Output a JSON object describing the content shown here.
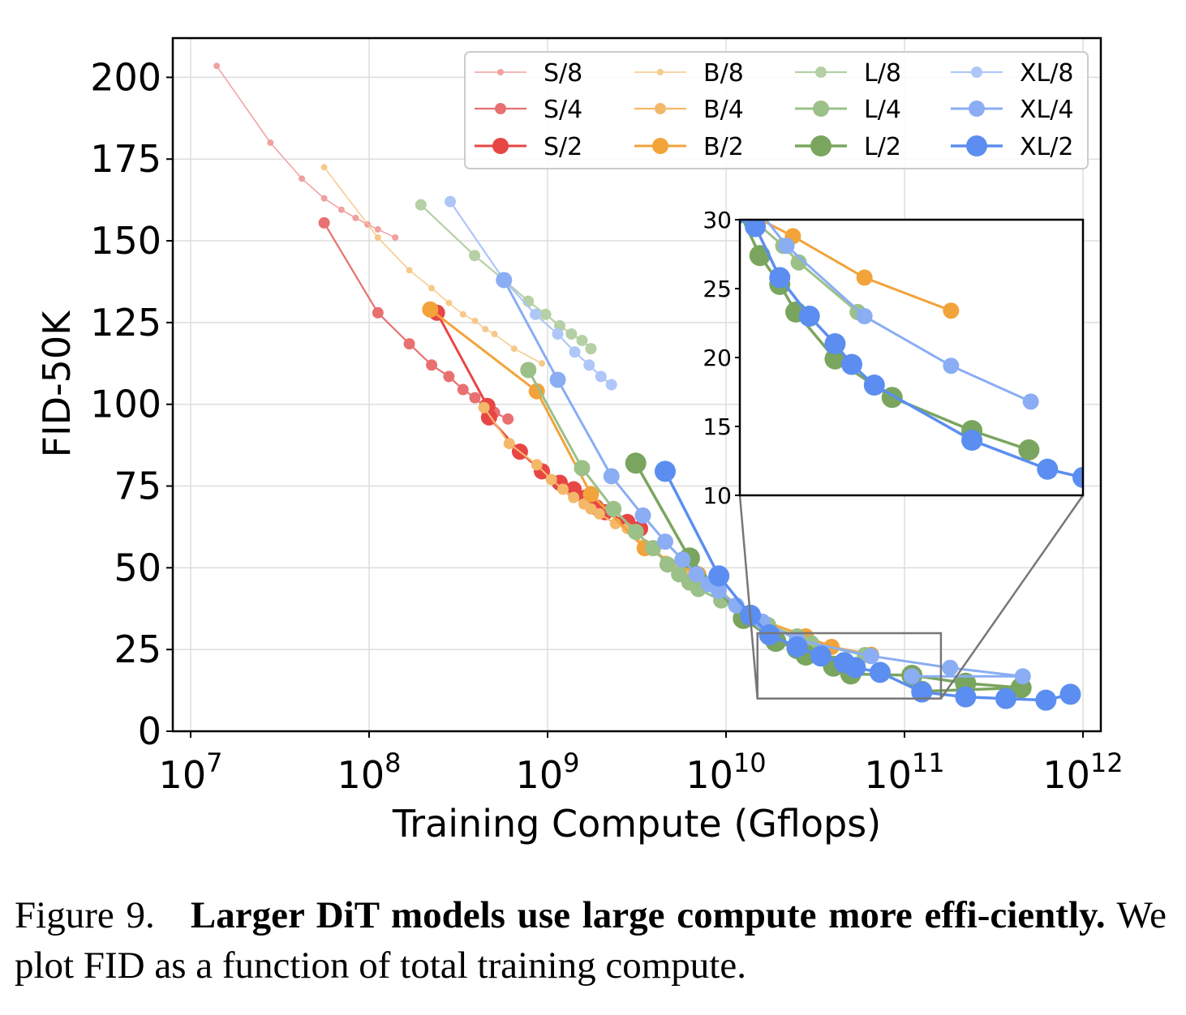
{
  "chart_data": {
    "type": "line",
    "xlabel": "Training Compute (Gflops)",
    "ylabel": "FID-50K",
    "xscale": "log",
    "xlim": [
      10000000.0,
      1000000000000.0
    ],
    "ylim": [
      0,
      212
    ],
    "x_ticks": [
      {
        "value": 10000000.0,
        "base": "10",
        "exp": "7"
      },
      {
        "value": 100000000.0,
        "base": "10",
        "exp": "8"
      },
      {
        "value": 1000000000.0,
        "base": "10",
        "exp": "9"
      },
      {
        "value": 10000000000.0,
        "base": "10",
        "exp": "10"
      },
      {
        "value": 100000000000.0,
        "base": "10",
        "exp": "11"
      },
      {
        "value": 1000000000000.0,
        "base": "10",
        "exp": "12"
      }
    ],
    "y_ticks": [
      "0",
      "25",
      "50",
      "75",
      "100",
      "125",
      "150",
      "175",
      "200"
    ],
    "grid": true,
    "legend_position": "top-right",
    "series": [
      {
        "name": "S/8",
        "color": "#f0a0a0",
        "size": "small",
        "points": [
          [
            14000000.0,
            203.5
          ],
          [
            28000000.0,
            180
          ],
          [
            42000000.0,
            169
          ],
          [
            56000000.0,
            163
          ],
          [
            70000000.0,
            159.5
          ],
          [
            84000000.0,
            157
          ],
          [
            98000000.0,
            155
          ],
          [
            112000000.0,
            153.5
          ],
          [
            140000000.0,
            151
          ]
        ]
      },
      {
        "name": "S/4",
        "color": "#e87070",
        "size": "medium",
        "points": [
          [
            56000000.0,
            155.5
          ],
          [
            112000000.0,
            128
          ],
          [
            168000000.0,
            118.5
          ],
          [
            224000000.0,
            112
          ],
          [
            280000000.0,
            108.5
          ],
          [
            336000000.0,
            104.5
          ],
          [
            392000000.0,
            102
          ],
          [
            448000000.0,
            99
          ],
          [
            504000000.0,
            97.5
          ],
          [
            600000000.0,
            95.5
          ]
        ]
      },
      {
        "name": "S/2",
        "color": "#e84545",
        "size": "large",
        "points": [
          [
            240000000.0,
            128
          ],
          [
            460000000.0,
            99.5
          ],
          [
            470000000.0,
            96
          ],
          [
            700000000.0,
            85.5
          ],
          [
            930000000.0,
            79.5
          ],
          [
            1170000000.0,
            76
          ],
          [
            1400000000.0,
            74
          ],
          [
            1640000000.0,
            71.5
          ],
          [
            1870000000.0,
            68.5
          ],
          [
            2100000000.0,
            67
          ],
          [
            2800000000.0,
            64
          ],
          [
            3300000000.0,
            62
          ]
        ]
      },
      {
        "name": "B/8",
        "color": "#f6c98a",
        "size": "small",
        "points": [
          [
            56000000.0,
            172.5
          ],
          [
            112000000.0,
            151
          ],
          [
            168000000.0,
            141
          ],
          [
            224000000.0,
            135.5
          ],
          [
            280000000.0,
            131
          ],
          [
            336000000.0,
            127.5
          ],
          [
            392000000.0,
            125.5
          ],
          [
            448000000.0,
            123
          ],
          [
            504000000.0,
            121.5
          ],
          [
            650000000.0,
            117
          ],
          [
            930000000.0,
            112.5
          ]
        ]
      },
      {
        "name": "B/4",
        "color": "#f4b86a",
        "size": "medium",
        "points": [
          [
            440000000.0,
            99
          ],
          [
            610000000.0,
            88
          ],
          [
            870000000.0,
            81.5
          ],
          [
            1050000000.0,
            77
          ],
          [
            1220000000.0,
            74
          ],
          [
            1400000000.0,
            71.5
          ],
          [
            1600000000.0,
            69.5
          ],
          [
            1750000000.0,
            68
          ],
          [
            1950000000.0,
            66.5
          ],
          [
            2400000000.0,
            63.5
          ],
          [
            2800000000.0,
            62
          ],
          [
            3500000000.0,
            57
          ],
          [
            4000000000.0,
            56
          ],
          [
            4600000000.0,
            52
          ],
          [
            5200000000.0,
            50
          ],
          [
            6000000000.0,
            48
          ],
          [
            7000000000.0,
            47
          ]
        ]
      },
      {
        "name": "B/2",
        "color": "#f2a33a",
        "size": "large",
        "points": [
          [
            220000000.0,
            129
          ],
          [
            870000000.0,
            104
          ],
          [
            1750000000.0,
            72.5
          ],
          [
            3500000000.0,
            56
          ],
          [
            7000000000.0,
            48
          ],
          [
            14000000000.0,
            35
          ],
          [
            28000000000.0,
            29
          ],
          [
            39000000000.0,
            25.8
          ],
          [
            65000000000.0,
            23.4
          ]
        ]
      },
      {
        "name": "L/8",
        "color": "#b5d0a5",
        "size": "medium",
        "points": [
          [
            195000000.0,
            161
          ],
          [
            390000000.0,
            145.5
          ],
          [
            585000000.0,
            137.5
          ],
          [
            780000000.0,
            131.5
          ],
          [
            975000000.0,
            127.5
          ],
          [
            1170000000.0,
            124
          ],
          [
            1360000000.0,
            121.5
          ],
          [
            1560000000.0,
            119.5
          ],
          [
            1750000000.0,
            117
          ]
        ]
      },
      {
        "name": "L/4",
        "color": "#9bc088",
        "size": "large",
        "points": [
          [
            780000000.0,
            110.5
          ],
          [
            1560000000.0,
            80.5
          ],
          [
            2340000000.0,
            68
          ],
          [
            3120000000.0,
            61
          ],
          [
            3900000000.0,
            56
          ],
          [
            4700000000.0,
            51
          ],
          [
            5460000000.0,
            48
          ],
          [
            6240000000.0,
            45.5
          ],
          [
            7000000000.0,
            43.5
          ],
          [
            9400000000.0,
            40
          ],
          [
            12500000000.0,
            36
          ],
          [
            17200000000.0,
            32.5
          ],
          [
            25000000000.0,
            29
          ],
          [
            30000000000.0,
            26.9
          ],
          [
            60000000000.0,
            23.3
          ]
        ]
      },
      {
        "name": "L/2",
        "color": "#7aa55e",
        "size": "xlarge",
        "points": [
          [
            3120000000.0,
            82
          ],
          [
            6240000000.0,
            53
          ],
          [
            12500000000.0,
            34.5
          ],
          [
            19000000000.0,
            27.5
          ],
          [
            25000000000.0,
            25.3
          ],
          [
            28000000000.0,
            23.3
          ],
          [
            40000000000.0,
            19.9
          ],
          [
            50000000000.0,
            17.5
          ],
          [
            110000000000.0,
            17.1
          ],
          [
            220000000000.0,
            14.7
          ],
          [
            450000000000.0,
            13.3
          ],
          [
            125000000000.0,
            12.2
          ]
        ]
      },
      {
        "name": "XL/8",
        "color": "#aec6f8",
        "size": "medium",
        "points": [
          [
            285000000.0,
            162
          ],
          [
            570000000.0,
            138
          ],
          [
            855000000.0,
            127.5
          ],
          [
            1140000000.0,
            121.5
          ],
          [
            1420000000.0,
            116
          ],
          [
            1710000000.0,
            112
          ],
          [
            1990000000.0,
            108.5
          ],
          [
            2280000000.0,
            106
          ]
        ]
      },
      {
        "name": "XL/4",
        "color": "#8aadf4",
        "size": "large",
        "points": [
          [
            570000000.0,
            138
          ],
          [
            1140000000.0,
            107.5
          ],
          [
            2280000000.0,
            78
          ],
          [
            3420000000.0,
            66
          ],
          [
            4560000000.0,
            58
          ],
          [
            5700000000.0,
            52.5
          ],
          [
            6840000000.0,
            48
          ],
          [
            8000000000.0,
            45
          ],
          [
            9100000000.0,
            43
          ],
          [
            11400000000.0,
            38.5
          ],
          [
            16000000000.0,
            33.5
          ],
          [
            25000000000.0,
            28
          ],
          [
            65000000000.0,
            23
          ],
          [
            180000000000.0,
            19.4
          ],
          [
            460000000000.0,
            16.8
          ],
          [
            110000000000.0,
            16.8
          ]
        ]
      },
      {
        "name": "XL/2",
        "color": "#5b8ef0",
        "size": "xlarge",
        "points": [
          [
            4560000000.0,
            79.5
          ],
          [
            9120000000.0,
            47.5
          ],
          [
            13700000000.0,
            35.5
          ],
          [
            17500000000.0,
            29.5
          ],
          [
            25000000000.0,
            25.8
          ],
          [
            34000000000.0,
            23
          ],
          [
            46000000000.0,
            21
          ],
          [
            53000000000.0,
            19.5
          ],
          [
            73000000000.0,
            18
          ],
          [
            125000000000.0,
            12
          ],
          [
            220000000000.0,
            10.5
          ],
          [
            370000000000.0,
            10
          ],
          [
            620000000000.0,
            9.5
          ],
          [
            850000000000.0,
            11.3
          ]
        ]
      }
    ],
    "inset": {
      "xlim": [
        15000000000.0,
        850000000000.0
      ],
      "ylim": [
        10,
        30
      ],
      "y_ticks": [
        "10",
        "15",
        "20",
        "25",
        "30"
      ],
      "source_box": {
        "xlim": [
          15000000000.0,
          160000000000.0
        ],
        "ylim": [
          10,
          30
        ]
      },
      "series": [
        {
          "name": "B/2",
          "points": [
            [
              14000000000.0,
              31
            ],
            [
              28000000000.0,
              28.8
            ],
            [
              65000000000.0,
              25.8
            ],
            [
              180000000000.0,
              23.4
            ]
          ]
        },
        {
          "name": "L/4",
          "points": [
            [
              12000000000.0,
              32
            ],
            [
              25000000000.0,
              28.1
            ],
            [
              30000000000.0,
              26.9
            ],
            [
              60000000000.0,
              23.3
            ]
          ]
        },
        {
          "name": "L/2",
          "points": [
            [
              15000000000.0,
              30.5
            ],
            [
              19000000000.0,
              27.4
            ],
            [
              24000000000.0,
              25.3
            ],
            [
              29000000000.0,
              23.3
            ],
            [
              46000000000.0,
              19.9
            ],
            [
              90000000000.0,
              17.1
            ],
            [
              230000000000.0,
              14.7
            ],
            [
              450000000000.0,
              13.3
            ]
          ]
        },
        {
          "name": "XL/4",
          "points": [
            [
              18000000000.0,
              31
            ],
            [
              26000000000.0,
              28.1
            ],
            [
              65000000000.0,
              23
            ],
            [
              180000000000.0,
              19.4
            ],
            [
              460000000000.0,
              16.8
            ]
          ]
        },
        {
          "name": "XL/2",
          "points": [
            [
              15000000000.0,
              30.5
            ],
            [
              18000000000.0,
              29.5
            ],
            [
              24000000000.0,
              25.8
            ],
            [
              34000000000.0,
              23
            ],
            [
              46000000000.0,
              21
            ],
            [
              56000000000.0,
              19.5
            ],
            [
              73000000000.0,
              18
            ],
            [
              230000000000.0,
              14
            ],
            [
              560000000000.0,
              11.9
            ],
            [
              850000000000.0,
              11.3
            ]
          ]
        }
      ]
    }
  },
  "caption": {
    "label": "Figure 9.",
    "bold": "Larger DiT models use large compute more effi-ciently.",
    "text": "We plot FID as a function of total training compute."
  }
}
